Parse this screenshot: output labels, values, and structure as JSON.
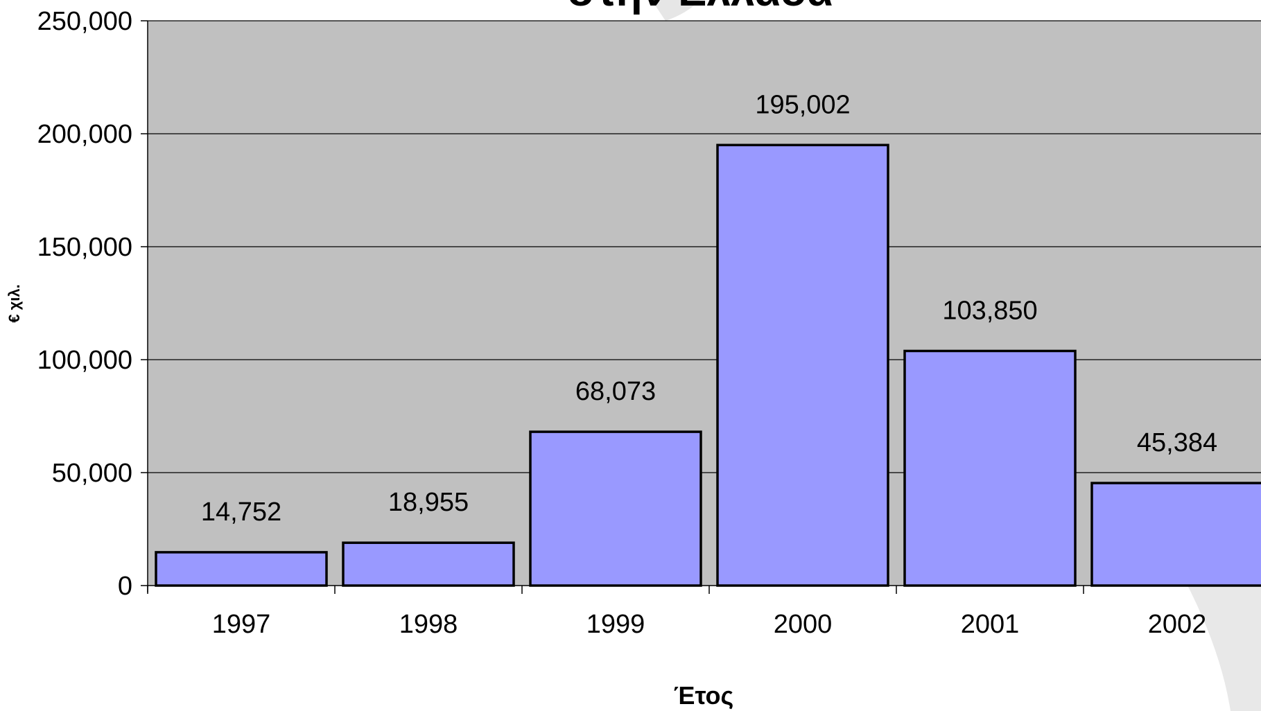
{
  "chart_data": {
    "type": "bar",
    "title": "στην Ελλάδα",
    "xlabel": "Έτος",
    "ylabel": "€ χιλ.",
    "categories": [
      "1997",
      "1998",
      "1999",
      "2000",
      "2001",
      "2002"
    ],
    "values": [
      14752,
      18955,
      68073,
      195002,
      103850,
      45384
    ],
    "data_labels": [
      "14,752",
      "18,955",
      "68,073",
      "195,002",
      "103,850",
      "45,384"
    ],
    "ylim": [
      0,
      250000
    ],
    "yticks": [
      0,
      50000,
      100000,
      150000,
      200000,
      250000
    ],
    "ytick_labels": [
      "0",
      "50,000",
      "100,000",
      "150,000",
      "200,000",
      "250,000"
    ],
    "grid": true,
    "colors": {
      "bar_fill": "#9999ff",
      "bar_stroke": "#000000",
      "plot_background": "#c0c0c0",
      "gridline": "#000000"
    }
  }
}
